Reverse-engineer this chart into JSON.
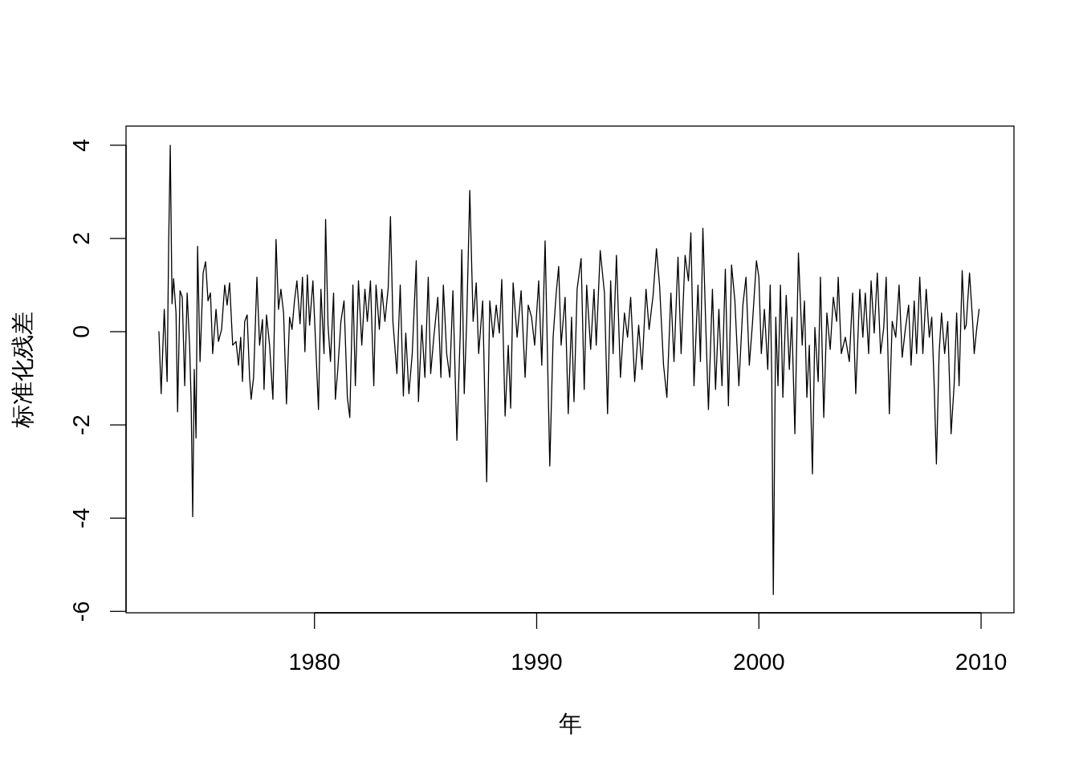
{
  "chart_data": {
    "type": "line",
    "xlabel": "年",
    "ylabel": "标准化残差",
    "color": "#000000",
    "xlim": [
      1971.52,
      2011.48
    ],
    "ylim": [
      -6.03,
      4.41
    ],
    "xticks": [
      1980,
      1990,
      2000,
      2010
    ],
    "yticks": [
      -6,
      -4,
      -2,
      0,
      2,
      4
    ],
    "x": [
      1973.0,
      1973.1,
      1973.24,
      1973.37,
      1973.44,
      1973.51,
      1973.59,
      1973.66,
      1973.77,
      1973.84,
      1973.95,
      1974.05,
      1974.16,
      1974.27,
      1974.38,
      1974.45,
      1974.52,
      1974.59,
      1974.67,
      1974.74,
      1974.85,
      1974.99,
      1975.1,
      1975.21,
      1975.32,
      1975.42,
      1975.57,
      1975.68,
      1975.82,
      1975.96,
      1976.07,
      1976.18,
      1976.32,
      1976.47,
      1976.58,
      1976.68,
      1976.76,
      1976.86,
      1976.97,
      1977.08,
      1977.15,
      1977.26,
      1977.41,
      1977.53,
      1977.66,
      1977.73,
      1977.84,
      1977.98,
      1978.13,
      1978.27,
      1978.38,
      1978.49,
      1978.61,
      1978.74,
      1978.88,
      1978.99,
      1979.1,
      1979.21,
      1979.35,
      1979.46,
      1979.57,
      1979.68,
      1979.78,
      1979.93,
      1980.04,
      1980.18,
      1980.29,
      1980.43,
      1980.5,
      1980.61,
      1980.72,
      1980.86,
      1980.94,
      1981.05,
      1981.19,
      1981.33,
      1981.48,
      1981.59,
      1981.73,
      1981.84,
      1981.98,
      1982.13,
      1982.27,
      1982.38,
      1982.52,
      1982.67,
      1982.77,
      1982.92,
      1983.03,
      1983.17,
      1983.32,
      1983.42,
      1983.53,
      1983.71,
      1983.86,
      1984.0,
      1984.11,
      1984.25,
      1984.4,
      1984.58,
      1984.68,
      1984.83,
      1984.97,
      1985.12,
      1985.23,
      1985.37,
      1985.55,
      1985.69,
      1985.8,
      1985.95,
      1986.09,
      1986.23,
      1986.41,
      1986.56,
      1986.63,
      1986.74,
      1986.85,
      1986.99,
      1987.14,
      1987.28,
      1987.39,
      1987.57,
      1987.75,
      1987.89,
      1988.04,
      1988.18,
      1988.32,
      1988.43,
      1988.58,
      1988.72,
      1988.83,
      1988.94,
      1989.12,
      1989.3,
      1989.48,
      1989.62,
      1989.77,
      1989.91,
      1990.09,
      1990.23,
      1990.38,
      1990.59,
      1990.74,
      1990.88,
      1990.99,
      1991.1,
      1991.28,
      1991.42,
      1991.57,
      1991.68,
      1991.82,
      1992.0,
      1992.14,
      1992.25,
      1992.43,
      1992.58,
      1992.68,
      1992.86,
      1993.05,
      1993.19,
      1993.33,
      1993.44,
      1993.59,
      1993.77,
      1993.95,
      1994.09,
      1994.23,
      1994.41,
      1994.59,
      1994.74,
      1994.92,
      1995.06,
      1995.24,
      1995.39,
      1995.53,
      1995.71,
      1995.86,
      1996.04,
      1996.18,
      1996.36,
      1996.5,
      1996.68,
      1996.83,
      1996.94,
      1997.08,
      1997.26,
      1997.37,
      1997.48,
      1997.62,
      1997.73,
      1997.91,
      1998.05,
      1998.2,
      1998.34,
      1998.49,
      1998.63,
      1998.77,
      1998.92,
      1999.1,
      1999.28,
      1999.42,
      1999.57,
      1999.71,
      1999.89,
      2000.0,
      2000.11,
      2000.25,
      2000.4,
      2000.51,
      2000.58,
      2000.65,
      2000.76,
      2000.86,
      2000.97,
      2001.08,
      2001.23,
      2001.37,
      2001.48,
      2001.62,
      2001.78,
      2001.95,
      2002.05,
      2002.16,
      2002.27,
      2002.41,
      2002.52,
      2002.67,
      2002.77,
      2002.92,
      2003.06,
      2003.21,
      2003.35,
      2003.5,
      2003.57,
      2003.71,
      2003.89,
      2004.07,
      2004.22,
      2004.36,
      2004.54,
      2004.68,
      2004.79,
      2004.94,
      2005.05,
      2005.19,
      2005.33,
      2005.48,
      2005.62,
      2005.73,
      2005.87,
      2006.0,
      2006.16,
      2006.31,
      2006.45,
      2006.59,
      2006.74,
      2006.85,
      2006.99,
      2007.1,
      2007.24,
      2007.38,
      2007.53,
      2007.67,
      2007.78,
      2007.89,
      2007.99,
      2008.11,
      2008.22,
      2008.36,
      2008.5,
      2008.65,
      2008.79,
      2008.9,
      2009.01,
      2009.15,
      2009.26,
      2009.33,
      2009.48,
      2009.62,
      2009.69,
      2009.8,
      2009.91
    ],
    "values": [
      0.0,
      -1.33,
      0.48,
      -1.07,
      1.95,
      4.0,
      0.6,
      1.14,
      0.4,
      -1.72,
      0.88,
      0.74,
      -1.16,
      0.83,
      -0.29,
      -1.5,
      -3.97,
      -0.81,
      -2.28,
      1.83,
      -0.64,
      1.26,
      1.5,
      0.66,
      0.83,
      -0.47,
      0.48,
      -0.21,
      0.05,
      1.0,
      0.57,
      1.05,
      -0.29,
      -0.21,
      -0.72,
      -0.12,
      -1.07,
      0.22,
      0.36,
      -0.98,
      -1.45,
      -0.98,
      1.17,
      -0.29,
      0.26,
      -1.24,
      0.36,
      -0.29,
      -1.45,
      1.98,
      0.48,
      0.91,
      0.4,
      -1.55,
      0.31,
      0.05,
      0.66,
      1.09,
      0.17,
      1.17,
      -0.43,
      1.22,
      0.14,
      1.09,
      -0.12,
      -1.67,
      0.91,
      -0.47,
      2.41,
      0.14,
      -0.64,
      0.83,
      -1.45,
      -0.81,
      0.22,
      0.66,
      -1.41,
      -1.84,
      1.0,
      -1.16,
      1.09,
      -0.29,
      0.91,
      0.22,
      1.09,
      -1.16,
      1.0,
      0.05,
      0.91,
      0.22,
      0.95,
      2.47,
      0.22,
      -0.9,
      1.0,
      -1.38,
      -0.03,
      -1.33,
      -0.47,
      1.52,
      -1.5,
      0.14,
      -0.98,
      1.17,
      -0.9,
      -0.12,
      0.74,
      -0.98,
      1.0,
      -0.47,
      -0.98,
      0.88,
      -2.33,
      -0.03,
      1.76,
      -1.33,
      0.22,
      3.03,
      0.22,
      1.05,
      -0.47,
      0.66,
      -3.22,
      0.66,
      -0.12,
      0.57,
      -0.03,
      1.12,
      -1.81,
      -0.29,
      -1.64,
      1.05,
      -0.12,
      0.88,
      -0.98,
      0.57,
      0.31,
      -0.29,
      1.09,
      -0.72,
      1.95,
      -2.88,
      -0.12,
      0.83,
      1.4,
      -0.29,
      0.74,
      -1.76,
      0.31,
      -1.5,
      0.91,
      1.57,
      -1.24,
      1.0,
      -0.38,
      0.91,
      -0.29,
      1.74,
      0.83,
      -1.76,
      1.09,
      -0.47,
      1.64,
      -0.98,
      0.4,
      -0.12,
      0.74,
      -1.07,
      0.14,
      -0.81,
      0.91,
      0.05,
      0.78,
      1.78,
      1.0,
      -0.72,
      -1.41,
      0.83,
      -0.64,
      1.6,
      -0.47,
      1.64,
      1.09,
      2.12,
      -1.16,
      1.0,
      -0.64,
      2.22,
      -0.03,
      -1.67,
      0.91,
      -1.24,
      0.48,
      -1.16,
      1.34,
      -1.59,
      1.43,
      0.66,
      -1.16,
      0.57,
      1.17,
      -0.72,
      0.17,
      1.52,
      1.17,
      -0.47,
      0.48,
      -0.81,
      1.0,
      -0.98,
      -5.64,
      0.31,
      -1.16,
      1.0,
      -1.41,
      0.78,
      -0.81,
      0.31,
      -2.19,
      1.69,
      -0.29,
      0.66,
      -1.41,
      -0.29,
      -3.05,
      0.09,
      -1.07,
      1.17,
      -1.84,
      0.4,
      -0.38,
      0.74,
      0.22,
      1.17,
      -0.47,
      -0.12,
      -0.64,
      0.83,
      -1.33,
      0.91,
      -0.12,
      0.83,
      -0.47,
      1.09,
      -0.03,
      1.26,
      -0.47,
      0.09,
      1.17,
      -1.76,
      0.22,
      -0.12,
      1.0,
      -0.55,
      0.05,
      0.57,
      -0.72,
      0.66,
      -0.47,
      1.17,
      -0.47,
      0.91,
      -0.12,
      0.31,
      -1.16,
      -2.84,
      -0.47,
      0.4,
      -0.47,
      0.22,
      -2.19,
      -1.12,
      0.4,
      -1.16,
      1.31,
      0.05,
      0.14,
      1.26,
      0.22,
      -0.47,
      0.05,
      0.48
    ]
  }
}
